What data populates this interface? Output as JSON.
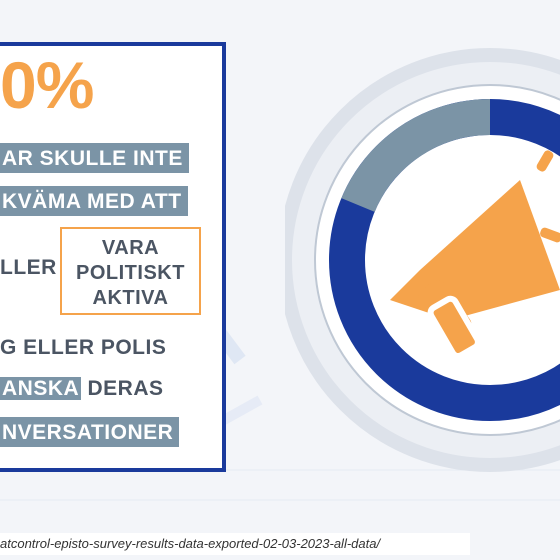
{
  "card": {
    "percent": "0%",
    "line1": "AR SKULLE INTE",
    "line2": "KVÄMA MED ATT",
    "line3": "LLER",
    "highlight": [
      "VARA",
      "POLITISKT",
      "AKTIVA"
    ],
    "line4": "G ELLER POLIS",
    "line5_strip": "ANSKA",
    "line5_rest": " DERAS",
    "line6": "NVERSATIONER"
  },
  "graphic": {
    "icon": "megaphone-icon",
    "colors": {
      "ring_primary": "#1a3a9c",
      "ring_secondary": "#7b94a6",
      "accent": "#f5a34b"
    }
  },
  "footer": {
    "url": "atcontrol-episto-survey-results-data-exported-02-03-2023-all-data/"
  }
}
